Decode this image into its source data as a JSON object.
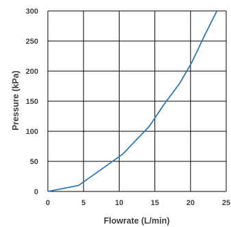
{
  "chart_data": {
    "type": "line",
    "title": "",
    "xlabel": "Flowrate (L/min)",
    "ylabel": "Pressure (kPa)",
    "xlim": [
      0,
      25
    ],
    "ylim": [
      0,
      300
    ],
    "xticks": [
      0,
      5,
      10,
      15,
      20,
      25
    ],
    "yticks": [
      0,
      50,
      100,
      150,
      200,
      250,
      300
    ],
    "xtick_labels": [
      "0",
      "5",
      "10",
      "15",
      "20",
      "25"
    ],
    "ytick_labels": [
      "0",
      "50",
      "100",
      "150",
      "200",
      "250",
      "300"
    ],
    "grid": true,
    "legend": "none",
    "series": [
      {
        "color": "#2e75b6",
        "x": [
          0,
          4.3,
          7.3,
          10.5,
          14.2,
          16.3,
          18.5,
          20.2,
          22.0,
          23.7
        ],
        "y": [
          0,
          10,
          35,
          62,
          108,
          145,
          180,
          215,
          260,
          300
        ]
      }
    ]
  }
}
